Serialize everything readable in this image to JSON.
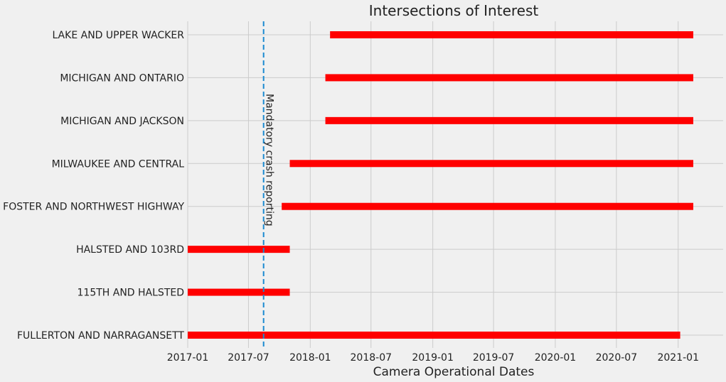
{
  "chart_data": {
    "type": "bar",
    "orientation": "horizontal-timeline",
    "title": "Intersections of Interest",
    "xlabel": "Camera Operational Dates",
    "ylabel": "",
    "x_ticks": [
      "2017-01",
      "2017-07",
      "2018-01",
      "2018-07",
      "2019-01",
      "2019-07",
      "2020-01",
      "2020-07",
      "2021-01"
    ],
    "xlim": [
      "2017-01-01",
      "2021-05-15"
    ],
    "grid": true,
    "bar_color": "#ff0000",
    "intervals": [
      {
        "label": "LAKE AND UPPER WACKER",
        "start": "2018-03-01",
        "end": "2021-02-15"
      },
      {
        "label": "MICHIGAN AND ONTARIO",
        "start": "2018-02-15",
        "end": "2021-02-15"
      },
      {
        "label": "MICHIGAN AND JACKSON",
        "start": "2018-02-15",
        "end": "2021-02-15"
      },
      {
        "label": "MILWAUKEE AND CENTRAL",
        "start": "2017-11-01",
        "end": "2021-02-15"
      },
      {
        "label": "FOSTER AND NORTHWEST HIGHWAY",
        "start": "2017-10-08",
        "end": "2021-02-15"
      },
      {
        "label": "HALSTED AND 103RD",
        "start": "2017-01-01",
        "end": "2017-11-01"
      },
      {
        "label": "115TH AND HALSTED",
        "start": "2017-01-01",
        "end": "2017-11-01"
      },
      {
        "label": "FULLERTON AND NARRAGANSETT",
        "start": "2017-01-01",
        "end": "2021-01-07"
      }
    ],
    "vline": {
      "date": "2017-08-15",
      "label": "Mandatory crash reporting",
      "color": "#1a8ad1",
      "style": "dashed"
    }
  }
}
